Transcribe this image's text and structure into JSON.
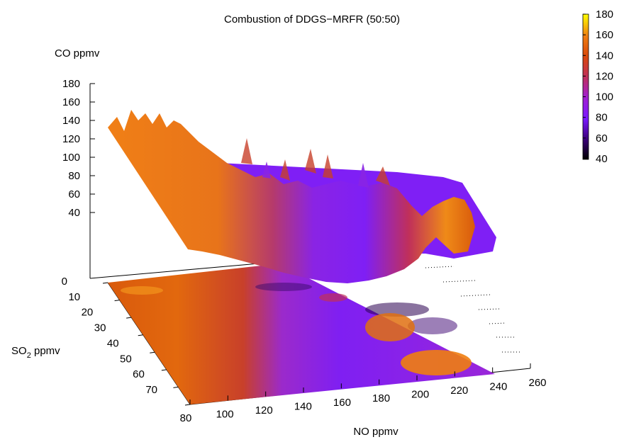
{
  "chart_data": {
    "type": "surface3d",
    "title": "Combustion of DDGS−MRFR (50:50)",
    "zlabel": "CO ppmv",
    "ylabel_main": "SO",
    "ylabel_sub": "2",
    "ylabel_tail": " ppmv",
    "xlabel": "NO ppmv",
    "x_ticks": [
      "80",
      "100",
      "120",
      "140",
      "160",
      "180",
      "200",
      "220",
      "240",
      "260"
    ],
    "y_ticks": [
      "0",
      "10",
      "20",
      "30",
      "40",
      "50",
      "60",
      "70"
    ],
    "z_ticks": [
      "40",
      "60",
      "80",
      "100",
      "120",
      "140",
      "160",
      "180"
    ],
    "colorbar_ticks": [
      "40",
      "60",
      "80",
      "100",
      "120",
      "140",
      "160",
      "180"
    ],
    "xlim": [
      80,
      260
    ],
    "ylim": [
      0,
      70
    ],
    "zlim": [
      0,
      180
    ],
    "colorbar_range": [
      40,
      180
    ],
    "palette": [
      "#000000",
      "#3a007a",
      "#7a19ff",
      "#a21fd0",
      "#c0305a",
      "#d9480b",
      "#ef7e10",
      "#f7b417",
      "#ffff00"
    ],
    "surface_profile_co": {
      "no": [
        80,
        100,
        120,
        140,
        160,
        180,
        200,
        220,
        240,
        260
      ],
      "co": [
        135,
        125,
        100,
        70,
        45,
        35,
        55,
        95,
        130,
        150
      ]
    }
  }
}
